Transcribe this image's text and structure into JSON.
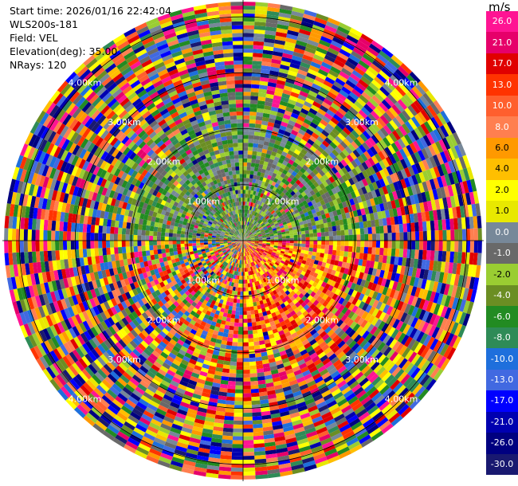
{
  "header": {
    "start_time": "Start time: 2026/01/16 22:42:04",
    "instrument": "WLS200s-181",
    "field": "Field: VEL",
    "elevation": "Elevation(deg): 35.00",
    "nrays": "NRays: 120"
  },
  "chart_data": {
    "type": "heatmap",
    "projection": "polar-ppi",
    "field": "VEL",
    "unit": "m/s",
    "nrays": 120,
    "elevation_deg": 35.0,
    "range_rings_km": [
      "1.00km",
      "2.00km",
      "3.00km",
      "4.00km"
    ],
    "max_range_km": 4.3,
    "colorbar": {
      "ticks": [
        "26.0",
        "21.0",
        "17.0",
        "13.0",
        "10.0",
        "8.0",
        "6.0",
        "4.0",
        "2.0",
        "1.0",
        "0.0",
        "-1.0",
        "-2.0",
        "-4.0",
        "-6.0",
        "-8.0",
        "-10.0",
        "-13.0",
        "-17.0",
        "-21.0",
        "-26.0",
        "-30.0"
      ],
      "colors": [
        "#ff1493",
        "#e6006a",
        "#e00000",
        "#ff3300",
        "#ff5f2e",
        "#ff7f50",
        "#ff9900",
        "#ffbf00",
        "#ffff00",
        "#e8e800",
        "#778899",
        "#696969",
        "#9acd32",
        "#6b8e23",
        "#228b22",
        "#2e8b57",
        "#1e6fdc",
        "#4169e1",
        "#0000ff",
        "#0000b0",
        "#000080",
        "#191970"
      ]
    }
  }
}
